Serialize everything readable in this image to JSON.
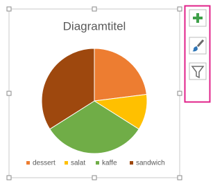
{
  "chart_data": {
    "type": "pie",
    "title": "Diagramtitel",
    "categories": [
      "dessert",
      "salat",
      "kaffe",
      "sandwich"
    ],
    "values": [
      23,
      11,
      32,
      34
    ],
    "colors": [
      "#ed7d31",
      "#ffc000",
      "#70ad47",
      "#9e480e"
    ],
    "legend": "bottom"
  }
}
